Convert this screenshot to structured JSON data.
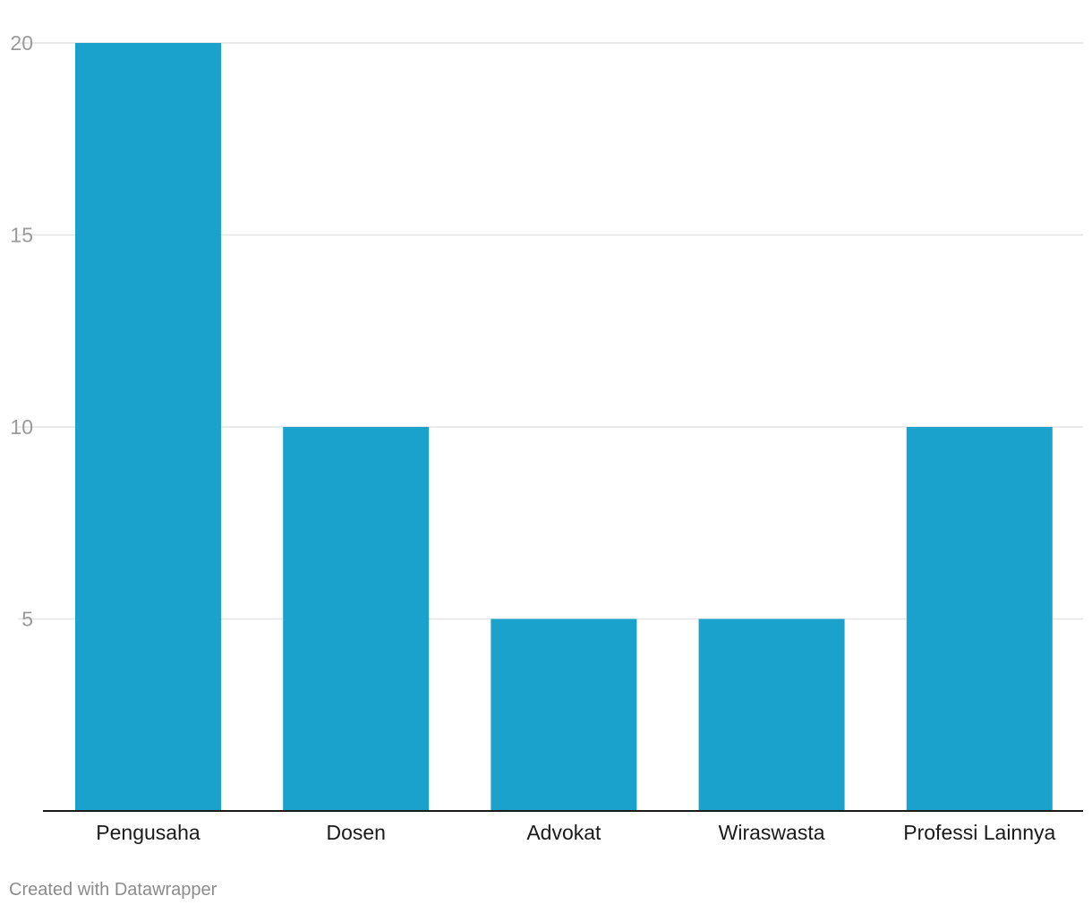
{
  "chart_data": {
    "type": "bar",
    "categories": [
      "Pengusaha",
      "Dosen",
      "Advokat",
      "Wiraswasta",
      "Professi Lainnya"
    ],
    "values": [
      20,
      10,
      5,
      5,
      10
    ],
    "title": "",
    "xlabel": "",
    "ylabel": "",
    "ylim": [
      0,
      20
    ],
    "yticks": [
      5,
      10,
      15,
      20
    ],
    "grid": true,
    "legend": "none",
    "bar_color": "#1aa1cc"
  },
  "footer": {
    "credit": "Created with Datawrapper"
  }
}
